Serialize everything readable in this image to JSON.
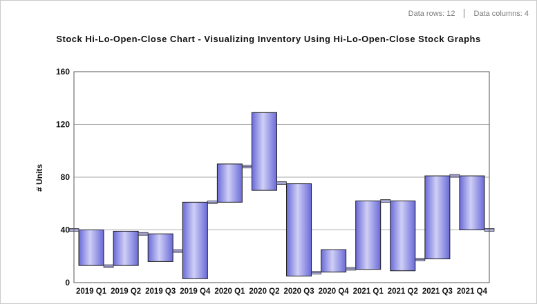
{
  "header": {
    "data_rows": "Data rows: 12",
    "data_columns": "Data columns: 4"
  },
  "chart_data": {
    "type": "hi-lo-open-close",
    "title": "Stock Hi-Lo-Open-Close Chart - Visualizing Inventory Using Hi-Lo-Open-Close Stock Graphs",
    "ylabel": "# Units",
    "xlabel": "",
    "ylim": [
      0,
      160
    ],
    "yticks": [
      "0",
      "40",
      "80",
      "120",
      "160"
    ],
    "grid": true,
    "categories": [
      "2019 Q1",
      "2019 Q2",
      "2019 Q3",
      "2019 Q4",
      "2020 Q1",
      "2020 Q2",
      "2020 Q3",
      "2020 Q4",
      "2021 Q1",
      "2021 Q2",
      "2021 Q3",
      "2021 Q4"
    ],
    "x_tick_labels": [
      "2019  Q1",
      "2019  Q2",
      "2019  Q3",
      "2019  Q4",
      "2020  Q1",
      "2020  Q2",
      "2020  Q3",
      "2020  Q4",
      "2021  Q1",
      "2021  Q2",
      "2021  Q3",
      "2021  Q4"
    ],
    "boxes": [
      {
        "low": 13,
        "high": 40
      },
      {
        "low": 13,
        "high": 39
      },
      {
        "low": 16,
        "high": 37
      },
      {
        "low": 3,
        "high": 61
      },
      {
        "low": 61,
        "high": 90
      },
      {
        "low": 70,
        "high": 129
      },
      {
        "low": 5,
        "high": 75
      },
      {
        "low": 8,
        "high": 25
      },
      {
        "low": 10,
        "high": 62
      },
      {
        "low": 9,
        "high": 62
      },
      {
        "low": 18,
        "high": 81
      },
      {
        "low": 40,
        "high": 81
      }
    ],
    "connectors": [
      40,
      12.5,
      37,
      24,
      61,
      88,
      75.5,
      7.5,
      10.5,
      62,
      17.5,
      81,
      40
    ],
    "colors": {
      "box_fill_light": "#c8c8f4",
      "box_fill_dark": "#6a6ad8",
      "box_stroke": "#1a1a1a",
      "grid": "#aaaaaa",
      "axis": "#555555"
    }
  }
}
